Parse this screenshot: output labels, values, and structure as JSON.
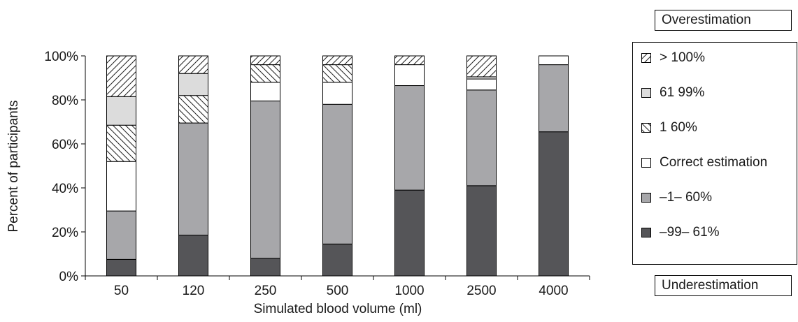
{
  "chart_data": {
    "type": "bar",
    "stacked": true,
    "xlabel": "Simulated blood volume (ml)",
    "ylabel": "Percent of participants",
    "categories": [
      "50",
      "120",
      "250",
      "500",
      "1000",
      "2500",
      "4000"
    ],
    "ylim": [
      0,
      100
    ],
    "yticks": [
      0,
      20,
      40,
      60,
      80,
      100
    ],
    "ytick_labels": [
      "0%",
      "20%",
      "40%",
      "60%",
      "80%",
      "100%"
    ],
    "grid": false,
    "legend_position": "right",
    "series": [
      {
        "name": "–99– 61%",
        "fill": "#555558",
        "pattern": "solid",
        "values": [
          7.5,
          18.5,
          8,
          14.5,
          39,
          41,
          65.5
        ]
      },
      {
        "name": "–1– 60%",
        "fill": "#a7a7aa",
        "pattern": "solid",
        "values": [
          22,
          51,
          71.5,
          63.5,
          47.5,
          43.5,
          30.5
        ]
      },
      {
        "name": "Correct estimation",
        "fill": "#ffffff",
        "pattern": "solid",
        "values": [
          22.5,
          0,
          8.5,
          10,
          9.5,
          5,
          4
        ]
      },
      {
        "name": "1 60%",
        "fill": "#ffffff",
        "pattern": "backslash",
        "values": [
          16.5,
          12.5,
          8,
          8,
          0,
          0,
          0
        ]
      },
      {
        "name": "61 99%",
        "fill": "#dcdcdc",
        "pattern": "solid",
        "values": [
          13,
          10,
          0,
          0,
          0,
          1,
          0
        ]
      },
      {
        "name": "> 100%",
        "fill": "#ffffff",
        "pattern": "slash",
        "values": [
          18.5,
          8,
          4,
          4,
          4,
          9.5,
          0
        ]
      }
    ]
  },
  "legend": {
    "top_label": "Overestimation",
    "bottom_label": "Underestimation"
  }
}
